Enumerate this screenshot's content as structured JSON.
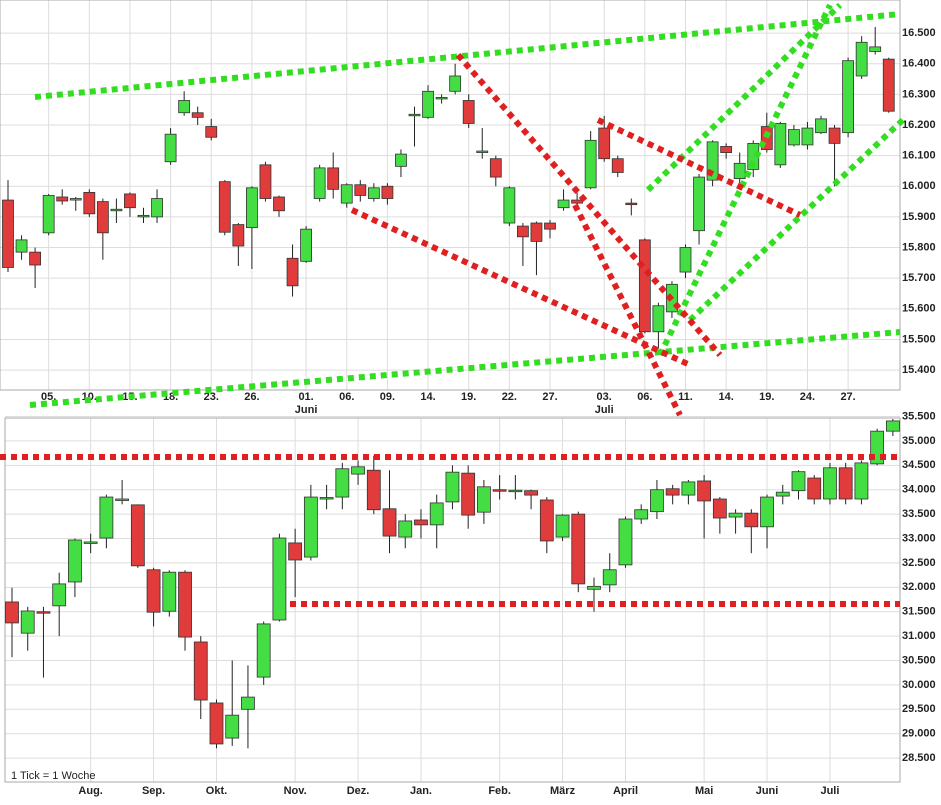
{
  "chart_data": [
    {
      "type": "candlestick",
      "categories": [
        null,
        null,
        null,
        "05.",
        null,
        null,
        "10.",
        null,
        null,
        "15.",
        null,
        null,
        "18.",
        null,
        null,
        "23.",
        null,
        null,
        "26.",
        null,
        null,
        null,
        "01.",
        null,
        null,
        "06.",
        null,
        null,
        "09.",
        null,
        null,
        "14.",
        null,
        null,
        "19.",
        null,
        null,
        "22.",
        null,
        null,
        "27.",
        null,
        null,
        null,
        "03.",
        null,
        null,
        "06.",
        null,
        null,
        "11.",
        null,
        null,
        "14.",
        null,
        null,
        "19.",
        null,
        null,
        "24.",
        null,
        null,
        "27.",
        null,
        null,
        null
      ],
      "months": [
        null,
        null,
        null,
        null,
        null,
        null,
        null,
        null,
        null,
        null,
        null,
        null,
        null,
        null,
        null,
        null,
        null,
        null,
        null,
        null,
        null,
        null,
        "Juni",
        null,
        null,
        null,
        null,
        null,
        null,
        null,
        null,
        null,
        null,
        null,
        null,
        null,
        null,
        null,
        null,
        null,
        null,
        null,
        null,
        null,
        "Juli",
        null,
        null,
        null,
        null,
        null,
        null,
        null,
        null,
        null,
        null,
        null,
        null,
        null,
        null,
        null,
        null,
        null,
        null,
        null,
        null,
        null
      ],
      "open": [
        15955,
        15785,
        15785,
        15848,
        15965,
        15955,
        15980,
        15950,
        15920,
        15975,
        15900,
        15900,
        16080,
        16240,
        16240,
        16195,
        16015,
        15875,
        15865,
        16070,
        15965,
        15765,
        15755,
        15960,
        16060,
        15945,
        16005,
        15960,
        16000,
        16065,
        16230,
        16225,
        16285,
        16310,
        16280,
        16110,
        16090,
        15880,
        15870,
        15880,
        15880,
        15930,
        15955,
        15995,
        16190,
        16090,
        15945,
        15825,
        15525,
        15590,
        15720,
        15855,
        16020,
        16130,
        16025,
        16055,
        16195,
        16070,
        16135,
        16135,
        16175,
        16190,
        16175,
        16360,
        16440,
        16415
      ],
      "high": [
        16020,
        15840,
        15800,
        15975,
        15990,
        15965,
        15990,
        15960,
        15960,
        15980,
        15930,
        15990,
        16190,
        16310,
        16260,
        16220,
        16020,
        15880,
        16000,
        16080,
        15970,
        15810,
        15870,
        16070,
        16110,
        16010,
        16020,
        16010,
        16010,
        16120,
        16260,
        16330,
        16300,
        16400,
        16300,
        16190,
        16100,
        16000,
        15880,
        15885,
        15890,
        15990,
        15980,
        16180,
        16230,
        16100,
        15960,
        15830,
        15620,
        15690,
        15810,
        16040,
        16150,
        16140,
        16110,
        16150,
        16240,
        16210,
        16200,
        16210,
        16230,
        16200,
        16420,
        16490,
        16520,
        16420
      ],
      "low": [
        15720,
        15760,
        15668,
        15840,
        15940,
        15920,
        15900,
        15760,
        15880,
        15900,
        15880,
        15880,
        16070,
        16230,
        16200,
        16150,
        15840,
        15740,
        15730,
        15950,
        15900,
        15640,
        15750,
        15950,
        15960,
        15930,
        15950,
        15950,
        15940,
        16030,
        16130,
        16220,
        16270,
        16300,
        16190,
        16090,
        16000,
        15870,
        15740,
        15710,
        15830,
        15920,
        15940,
        15990,
        16080,
        16030,
        15905,
        15520,
        15470,
        15570,
        15700,
        15810,
        16000,
        16090,
        16010,
        16030,
        16110,
        16060,
        16130,
        16120,
        16170,
        16000,
        16160,
        16350,
        16430,
        16240
      ],
      "close": [
        15735,
        15825,
        15743,
        15970,
        15952,
        15960,
        15910,
        15848,
        15925,
        15930,
        15905,
        15960,
        16170,
        16280,
        16225,
        16160,
        15850,
        15805,
        15995,
        15960,
        15920,
        15675,
        15860,
        16060,
        15990,
        16005,
        15970,
        15995,
        15960,
        16105,
        16235,
        16310,
        16290,
        16360,
        16205,
        16115,
        16030,
        15995,
        15835,
        15820,
        15860,
        15955,
        15945,
        16150,
        16090,
        16045,
        15940,
        15525,
        15610,
        15680,
        15800,
        16030,
        16145,
        16110,
        16075,
        16140,
        16120,
        16205,
        16185,
        16190,
        16220,
        16140,
        16410,
        16470,
        16455,
        16245
      ],
      "up_color": "#44dd44",
      "down_color": "#e03c3c",
      "ylim": [
        15335,
        16608
      ],
      "yticks": [
        {
          "value": 15400,
          "label": "15.400"
        },
        {
          "value": 15500,
          "label": "15.500"
        },
        {
          "value": 15600,
          "label": "15.600"
        },
        {
          "value": 15700,
          "label": "15.700"
        },
        {
          "value": 15800,
          "label": "15.800"
        },
        {
          "value": 15900,
          "label": "15.900"
        },
        {
          "value": 16000,
          "label": "16.000"
        },
        {
          "value": 16100,
          "label": "16.100"
        },
        {
          "value": 16200,
          "label": "16.200"
        },
        {
          "value": 16300,
          "label": "16.300"
        },
        {
          "value": 16400,
          "label": "16.400"
        },
        {
          "value": 16500,
          "label": "16.500"
        }
      ],
      "grid": true
    },
    {
      "type": "candlestick",
      "note": "1 Tick = 1 Woche",
      "categories": [
        null,
        null,
        null,
        null,
        null,
        "Aug.",
        null,
        null,
        null,
        "Sep.",
        null,
        null,
        null,
        "Okt.",
        null,
        null,
        null,
        null,
        "Nov.",
        null,
        null,
        null,
        "Dez.",
        null,
        null,
        null,
        "Jan.",
        null,
        null,
        null,
        null,
        "Feb.",
        null,
        null,
        null,
        "März",
        null,
        null,
        null,
        "April",
        null,
        null,
        null,
        null,
        "Mai",
        null,
        null,
        null,
        "Juni",
        null,
        null,
        null,
        "Juli",
        null,
        null,
        null,
        null
      ],
      "open": [
        31700,
        31060,
        31500,
        31620,
        32110,
        32910,
        33010,
        33800,
        33690,
        32360,
        31510,
        32310,
        30880,
        29630,
        28910,
        29500,
        30160,
        31330,
        32910,
        32620,
        33810,
        33850,
        34320,
        34400,
        33610,
        33030,
        33380,
        33280,
        33750,
        34340,
        33540,
        34000,
        33970,
        33980,
        33790,
        33030,
        33500,
        31960,
        32050,
        32460,
        33400,
        33550,
        34020,
        33890,
        34180,
        33810,
        33440,
        33520,
        33240,
        33870,
        33980,
        34240,
        33810,
        34450,
        33810,
        34530,
        35200
      ],
      "high": [
        31990,
        31600,
        31600,
        32300,
        33000,
        33100,
        33900,
        34200,
        33700,
        32400,
        32350,
        32350,
        31000,
        29700,
        30500,
        30400,
        31300,
        33100,
        33200,
        34100,
        34100,
        34550,
        34600,
        34700,
        34400,
        33500,
        33600,
        33900,
        34500,
        34500,
        34200,
        34300,
        34300,
        34000,
        33850,
        33500,
        33550,
        32200,
        32700,
        33450,
        33700,
        34200,
        34100,
        34200,
        34300,
        33850,
        33600,
        33600,
        33900,
        34100,
        34400,
        34300,
        34550,
        34550,
        34600,
        35250,
        35450
      ],
      "low": [
        30570,
        30700,
        30150,
        31000,
        31800,
        32700,
        32800,
        33700,
        32400,
        31200,
        31400,
        30700,
        29300,
        28700,
        28750,
        28700,
        30000,
        31300,
        31800,
        32550,
        33600,
        33600,
        34100,
        33500,
        32700,
        32800,
        33000,
        32800,
        33600,
        33200,
        33300,
        33800,
        33800,
        33600,
        32700,
        32950,
        31900,
        31500,
        31900,
        32400,
        33300,
        33400,
        33700,
        33700,
        33000,
        33100,
        33100,
        32700,
        32800,
        33700,
        33800,
        33700,
        33700,
        33700,
        33700,
        34500,
        35100
      ],
      "close": [
        31270,
        31515,
        31480,
        32070,
        32970,
        32930,
        33850,
        33810,
        32440,
        31490,
        32310,
        30980,
        29690,
        28790,
        29380,
        29750,
        31250,
        33010,
        32560,
        33850,
        33840,
        34430,
        34470,
        33590,
        33050,
        33360,
        33280,
        33730,
        34360,
        33480,
        34060,
        33980,
        33990,
        33890,
        32950,
        33480,
        32070,
        32020,
        32360,
        33400,
        33590,
        34000,
        33890,
        34160,
        33770,
        33420,
        33520,
        33240,
        33850,
        33950,
        34370,
        33810,
        34450,
        33810,
        34550,
        35200,
        35410
      ],
      "up_color": "#44dd44",
      "down_color": "#e03c3c",
      "ylim": [
        28010,
        35470
      ],
      "yticks": [
        {
          "value": 28500,
          "label": "28.500"
        },
        {
          "value": 29000,
          "label": "29.000"
        },
        {
          "value": 29500,
          "label": "29.500"
        },
        {
          "value": 30000,
          "label": "30.000"
        },
        {
          "value": 30500,
          "label": "30.500"
        },
        {
          "value": 31000,
          "label": "31.000"
        },
        {
          "value": 31500,
          "label": "31.500"
        },
        {
          "value": 32000,
          "label": "32.000"
        },
        {
          "value": 32500,
          "label": "32.500"
        },
        {
          "value": 33000,
          "label": "33.000"
        },
        {
          "value": 33500,
          "label": "33.500"
        },
        {
          "value": 34000,
          "label": "34.000"
        },
        {
          "value": 34500,
          "label": "34.500"
        },
        {
          "value": 35000,
          "label": "35.000"
        },
        {
          "value": 35500,
          "label": "35.500"
        }
      ],
      "grid": true
    }
  ]
}
